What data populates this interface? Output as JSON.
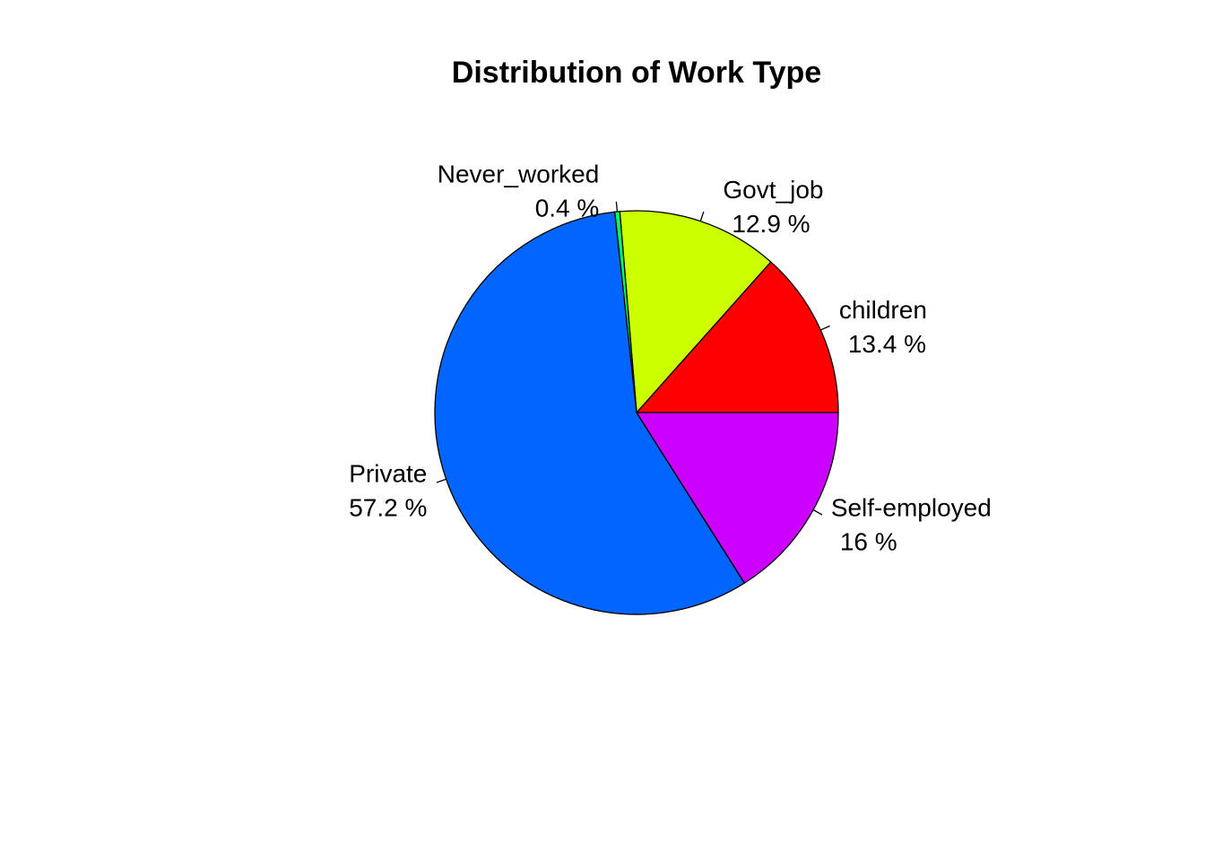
{
  "chart_data": {
    "type": "pie",
    "title": "Distribution of Work Type",
    "start": "right",
    "direction": "counterclockwise",
    "slices": [
      {
        "label": "children",
        "value": 13.4,
        "value_label": "13.4 %",
        "color": "#FF0000"
      },
      {
        "label": "Govt_job",
        "value": 12.9,
        "value_label": "12.9 %",
        "color": "#CCFF00"
      },
      {
        "label": "Never_worked",
        "value": 0.4,
        "value_label": "0.4 %",
        "color": "#00FF66"
      },
      {
        "label": "Private",
        "value": 57.2,
        "value_label": "57.2 %",
        "color": "#0066FF"
      },
      {
        "label": "Self-employed",
        "value": 16,
        "value_label": "16 %",
        "color": "#CC00FF"
      }
    ]
  }
}
